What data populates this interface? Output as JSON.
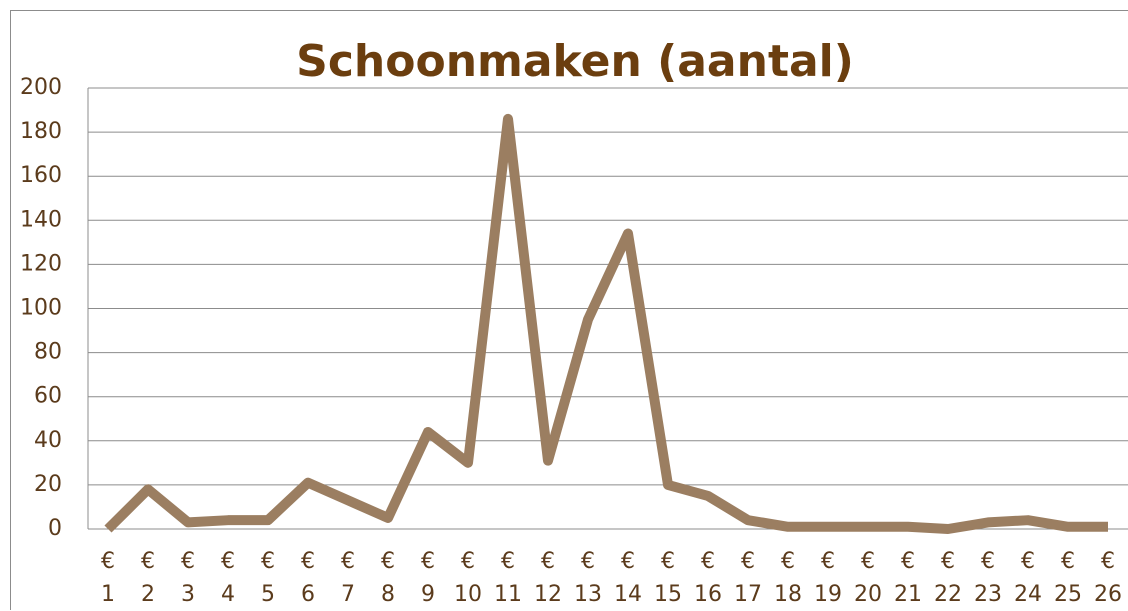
{
  "chart_data": {
    "type": "line",
    "title": "Schoonmaken (aantal)",
    "categories": [
      "€ 1",
      "€ 2",
      "€ 3",
      "€ 4",
      "€ 5",
      "€ 6",
      "€ 7",
      "€ 8",
      "€ 9",
      "€ 10",
      "€ 11",
      "€ 12",
      "€ 13",
      "€ 14",
      "€ 15",
      "€ 16",
      "€ 17",
      "€ 18",
      "€ 19",
      "€ 20",
      "€ 21",
      "€ 22",
      "€ 23",
      "€ 24",
      "€ 25",
      "€ 26"
    ],
    "values": [
      0,
      18,
      3,
      4,
      4,
      21,
      13,
      5,
      44,
      30,
      186,
      31,
      95,
      134,
      20,
      15,
      4,
      1,
      1,
      1,
      1,
      0,
      3,
      4,
      1,
      1
    ],
    "color": "#9b7e61",
    "ylim": [
      0,
      200
    ],
    "yticks": [
      0,
      20,
      40,
      60,
      80,
      100,
      120,
      140,
      160,
      180,
      200
    ],
    "grid": true
  }
}
